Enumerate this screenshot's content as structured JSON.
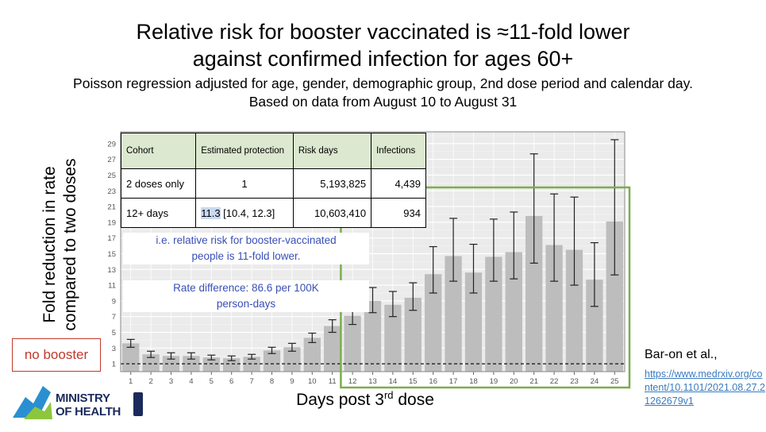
{
  "title_line1": "Relative risk for booster vaccinated is ≈11-fold lower",
  "title_line2": "against confirmed infection for ages 60+",
  "subtitle_line1": "Poisson regression adjusted for age, gender, demographic group, 2nd dose period and calendar day.",
  "subtitle_line2": "Based on data from August 10 to August 31",
  "ylabel_line1": "Fold reduction in rate",
  "ylabel_line2": "compared to two doses",
  "xlabel": "Days post 3",
  "xlabel_sup": "rd",
  "xlabel_tail": " dose",
  "no_booster_label": "no booster",
  "table": {
    "headers": [
      "Cohort",
      "Estimated protection",
      "Risk days",
      "Infections"
    ],
    "row1": {
      "cohort": "2 doses only",
      "protection": "1",
      "risk_days": "5,193,825",
      "infections": "4,439"
    },
    "row2": {
      "cohort": "12+ days",
      "protection_value": "11.3",
      "protection_ci": " [10.4, 12.3]",
      "risk_days": "10,603,410",
      "infections": "934"
    }
  },
  "note1_line1": "i.e. relative risk for booster-vaccinated",
  "note1_line2": "people is 11-fold lower.",
  "note2_line1": "Rate difference: 86.6 per 100K",
  "note2_line2": "person-days",
  "logo": {
    "line1": "MINISTRY",
    "line2": "OF HEALTH"
  },
  "citation": "Bar-on et al.,",
  "citation_link": "https://www.medrxiv.org/content/10.1101/2021.08.27.21262679v1",
  "colors": {
    "bar": "#bdbdbd",
    "panel": "#ebebeb",
    "highlight_box": "#7cad4f",
    "no_booster": "#c0392b",
    "note_text": "#3a4fb6",
    "link": "#3b7bbf"
  },
  "chart_data": {
    "type": "bar",
    "categories": [
      "1",
      "2",
      "3",
      "4",
      "5",
      "6",
      "7",
      "8",
      "9",
      "10",
      "11",
      "12",
      "13",
      "14",
      "15",
      "16",
      "17",
      "18",
      "19",
      "20",
      "21",
      "22",
      "23",
      "24",
      "25"
    ],
    "values": [
      3.6,
      2.2,
      2.0,
      2.0,
      1.8,
      1.7,
      1.9,
      2.7,
      3.1,
      4.3,
      5.8,
      7.1,
      9.0,
      8.5,
      9.4,
      12.4,
      14.7,
      12.6,
      14.6,
      15.2,
      19.8,
      16.1,
      15.5,
      11.7,
      19.1
    ],
    "ci_low": [
      3.1,
      1.8,
      1.6,
      1.6,
      1.5,
      1.4,
      1.6,
      2.3,
      2.6,
      3.7,
      5.0,
      6.0,
      7.5,
      7.0,
      7.8,
      10.0,
      11.5,
      10.0,
      11.5,
      11.8,
      13.8,
      11.5,
      11.0,
      8.3,
      12.3
    ],
    "ci_high": [
      4.1,
      2.6,
      2.4,
      2.4,
      2.1,
      2.0,
      2.2,
      3.1,
      3.6,
      4.9,
      6.6,
      8.4,
      10.7,
      10.2,
      11.3,
      15.9,
      19.5,
      16.2,
      19.4,
      20.3,
      27.7,
      22.6,
      22.2,
      16.4,
      29.5
    ],
    "reference_line": 1,
    "yticks": [
      1,
      3,
      5,
      7,
      9,
      11,
      13,
      15,
      17,
      19,
      21,
      23,
      25,
      27,
      29
    ],
    "ylim": [
      0,
      30.5
    ],
    "grid": true
  }
}
